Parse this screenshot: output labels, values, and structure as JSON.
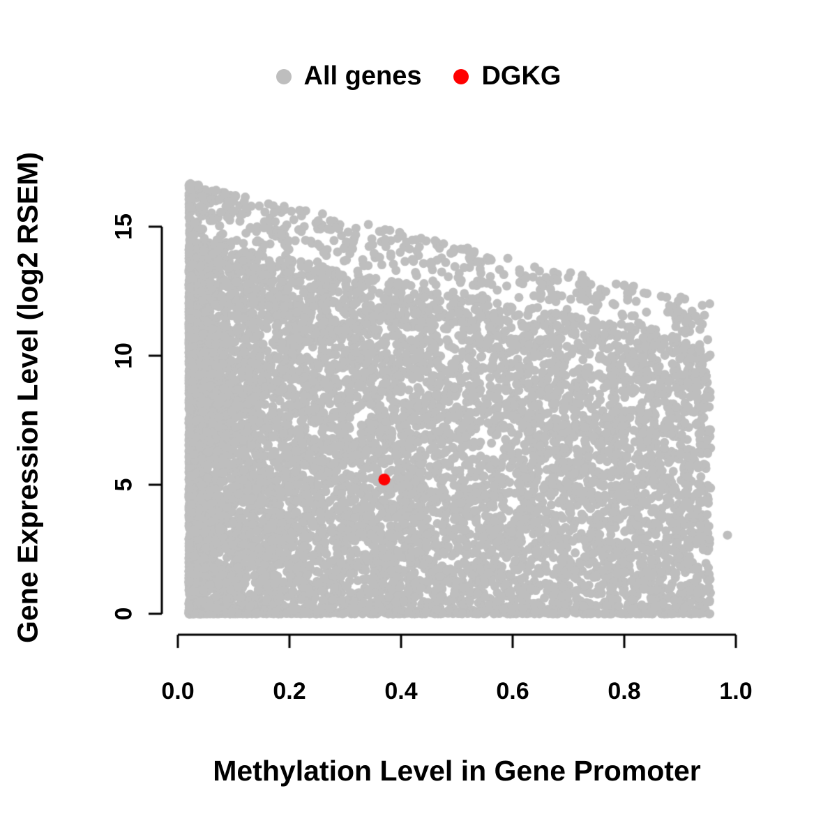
{
  "chart_data": {
    "type": "scatter",
    "title": "",
    "xlabel": "Methylation Level in Gene Promoter",
    "ylabel": "Gene Expression Level (log2 RSEM)",
    "xlim": [
      0,
      1
    ],
    "ylim": [
      0,
      17
    ],
    "grid": false,
    "legend_position": "top-center",
    "x_ticks": {
      "values": [
        0,
        0.2,
        0.4,
        0.6,
        0.8,
        1.0
      ],
      "labels": [
        "0.0",
        "0.2",
        "0.4",
        "0.6",
        "0.8",
        "1.0"
      ]
    },
    "y_ticks": {
      "values": [
        0,
        5,
        10,
        15
      ],
      "labels": [
        "0",
        "5",
        "10",
        "15"
      ]
    },
    "legend": [
      {
        "label": "All genes",
        "color": "#bebebe"
      },
      {
        "label": "DGKG",
        "color": "#ff0000"
      }
    ],
    "series": [
      {
        "name": "All genes",
        "color": "#bebebe",
        "marker_radius": 6.5,
        "cloud": {
          "description": "dense cloud of all genes; density highest at low methylation and low expression, upper envelope decreasing from ~16.7 at x=0.02 to ~12 at x=0.95",
          "n": 9000,
          "seed": 42,
          "x_min": 0.02,
          "x_max": 0.955,
          "env_intercept": 16.8,
          "env_slope": -5.0
        },
        "outlier_points": [
          [
            0.985,
            3.05
          ]
        ]
      },
      {
        "name": "DGKG",
        "color": "#ff0000",
        "marker_radius": 8.5,
        "points": [
          [
            0.37,
            5.2
          ]
        ]
      }
    ]
  }
}
